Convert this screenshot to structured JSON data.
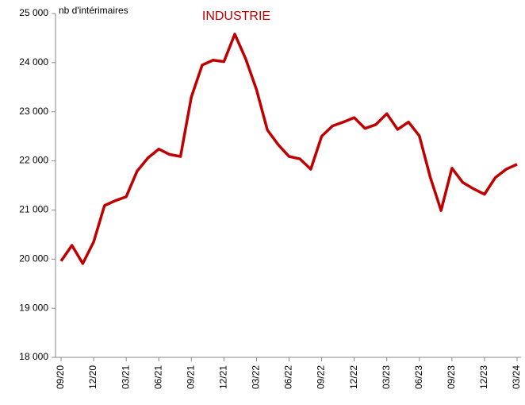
{
  "chart_data": {
    "type": "line",
    "title": "INDUSTRIE",
    "y_label": "nb d'intérimaires",
    "categories": [
      "09/20",
      null,
      null,
      "12/20",
      null,
      null,
      "03/21",
      null,
      null,
      "06/21",
      null,
      null,
      "09/21",
      null,
      null,
      "12/21",
      null,
      null,
      "03/22",
      null,
      null,
      "06/22",
      null,
      null,
      "09/22",
      null,
      null,
      "12/22",
      null,
      null,
      "03/23",
      null,
      null,
      "06/23",
      null,
      null,
      "09/23",
      null,
      null,
      "12/23",
      null,
      null,
      "03/24"
    ],
    "series": [
      {
        "name": "INDUSTRIE",
        "color": "#c00000",
        "values": [
          19960,
          20280,
          19910,
          20350,
          21090,
          21190,
          21270,
          21790,
          22060,
          22240,
          22130,
          22090,
          23300,
          23950,
          24050,
          24020,
          24580,
          24080,
          23450,
          22630,
          22330,
          22090,
          22040,
          21830,
          22500,
          22710,
          22790,
          22880,
          22660,
          22740,
          22960,
          22640,
          22790,
          22510,
          21670,
          20990,
          21850,
          21560,
          21430,
          21320,
          21660,
          21830,
          21930
        ]
      }
    ],
    "ylim": [
      18000,
      25000
    ],
    "yticks": [
      {
        "value": 18000,
        "label": "18 000"
      },
      {
        "value": 19000,
        "label": "19 000"
      },
      {
        "value": 20000,
        "label": "20 000"
      },
      {
        "value": 21000,
        "label": "21 000"
      },
      {
        "value": 22000,
        "label": "22 000"
      },
      {
        "value": 23000,
        "label": "23 000"
      },
      {
        "value": 24000,
        "label": "24 000"
      },
      {
        "value": 25000,
        "label": "25 000"
      }
    ],
    "grid": false
  }
}
